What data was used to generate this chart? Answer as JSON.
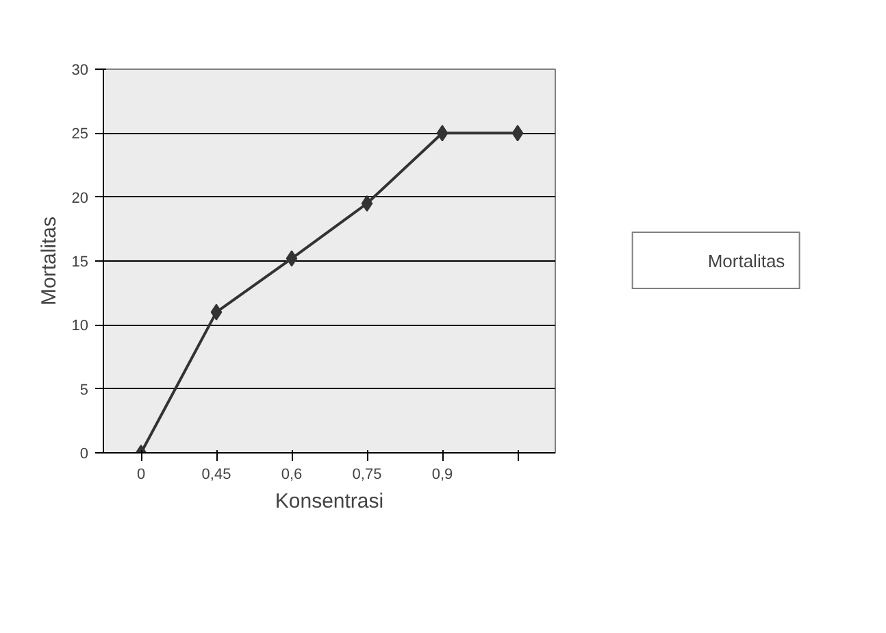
{
  "chart_data": {
    "type": "line",
    "xlabel": "Konsentrasi",
    "ylabel": "Mortalitas",
    "categories": [
      "0",
      "0,45",
      "0,6",
      "0,75",
      "0,9",
      null
    ],
    "series": [
      {
        "name": "Mortalitas",
        "color": "#333333",
        "values": [
          0,
          11,
          15.2,
          19.5,
          25,
          25
        ]
      }
    ],
    "ylim": [
      0,
      30
    ],
    "yticks": [
      0,
      5,
      10,
      15,
      20,
      25,
      30
    ],
    "grid": "y",
    "legend": "right",
    "marker": "diamond",
    "line_style": "solid"
  }
}
